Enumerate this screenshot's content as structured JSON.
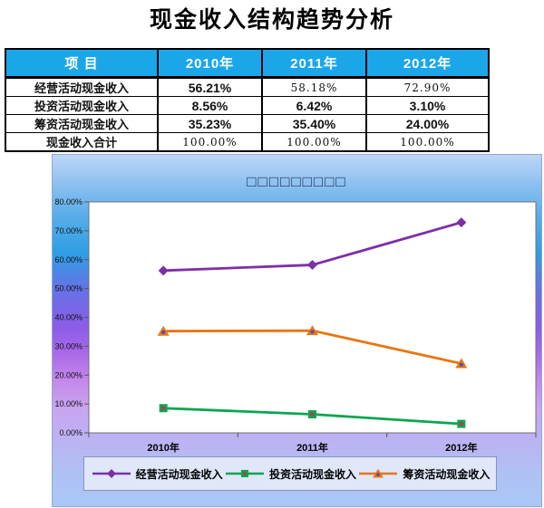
{
  "page": {
    "title": "现金收入结构趋势分析"
  },
  "table": {
    "header": [
      "项 目",
      "2010年",
      "2011年",
      "2012年"
    ],
    "header_bg": "#1ca6ea",
    "rows": [
      {
        "label": "经营活动现金收入",
        "values": [
          "56.21%",
          "58.18%",
          "72.90%"
        ],
        "alt": [
          false,
          true,
          true
        ]
      },
      {
        "label": "投资活动现金收入",
        "values": [
          "8.56%",
          "6.42%",
          "3.10%"
        ],
        "alt": [
          false,
          false,
          false
        ]
      },
      {
        "label": "筹资活动现金收入",
        "values": [
          "35.23%",
          "35.40%",
          "24.00%"
        ],
        "alt": [
          false,
          false,
          false
        ]
      },
      {
        "label": "现金收入合计",
        "values": [
          "100.00%",
          "100.00%",
          "100.00%"
        ],
        "alt": [
          true,
          true,
          true
        ]
      }
    ]
  },
  "chart_data": {
    "type": "line",
    "title": "□□□□□□□□□",
    "categories": [
      "2010年",
      "2011年",
      "2012年"
    ],
    "series": [
      {
        "name": "经营活动现金收入",
        "values": [
          56.21,
          58.18,
          72.9
        ],
        "color": "#7d2fa8",
        "marker": "diamond",
        "marker_center": ""
      },
      {
        "name": "投资活动现金收入",
        "values": [
          8.56,
          6.42,
          3.1
        ],
        "color": "#0aa64e",
        "marker": "square",
        "marker_center": "#d42a50"
      },
      {
        "name": "筹资活动现金收入",
        "values": [
          35.23,
          35.4,
          24.0
        ],
        "color": "#e8760f",
        "marker": "triangle",
        "marker_center": "#4a4ad0"
      }
    ],
    "ylim": [
      0,
      80
    ],
    "ytick_step": 10,
    "ytick_labels": [
      "0.00%",
      "10.00%",
      "20.00%",
      "30.00%",
      "40.00%",
      "50.00%",
      "60.00%",
      "70.00%",
      "80.00%"
    ],
    "grid": false,
    "plot_bg": "#ffffff",
    "legend_position": "bottom"
  }
}
